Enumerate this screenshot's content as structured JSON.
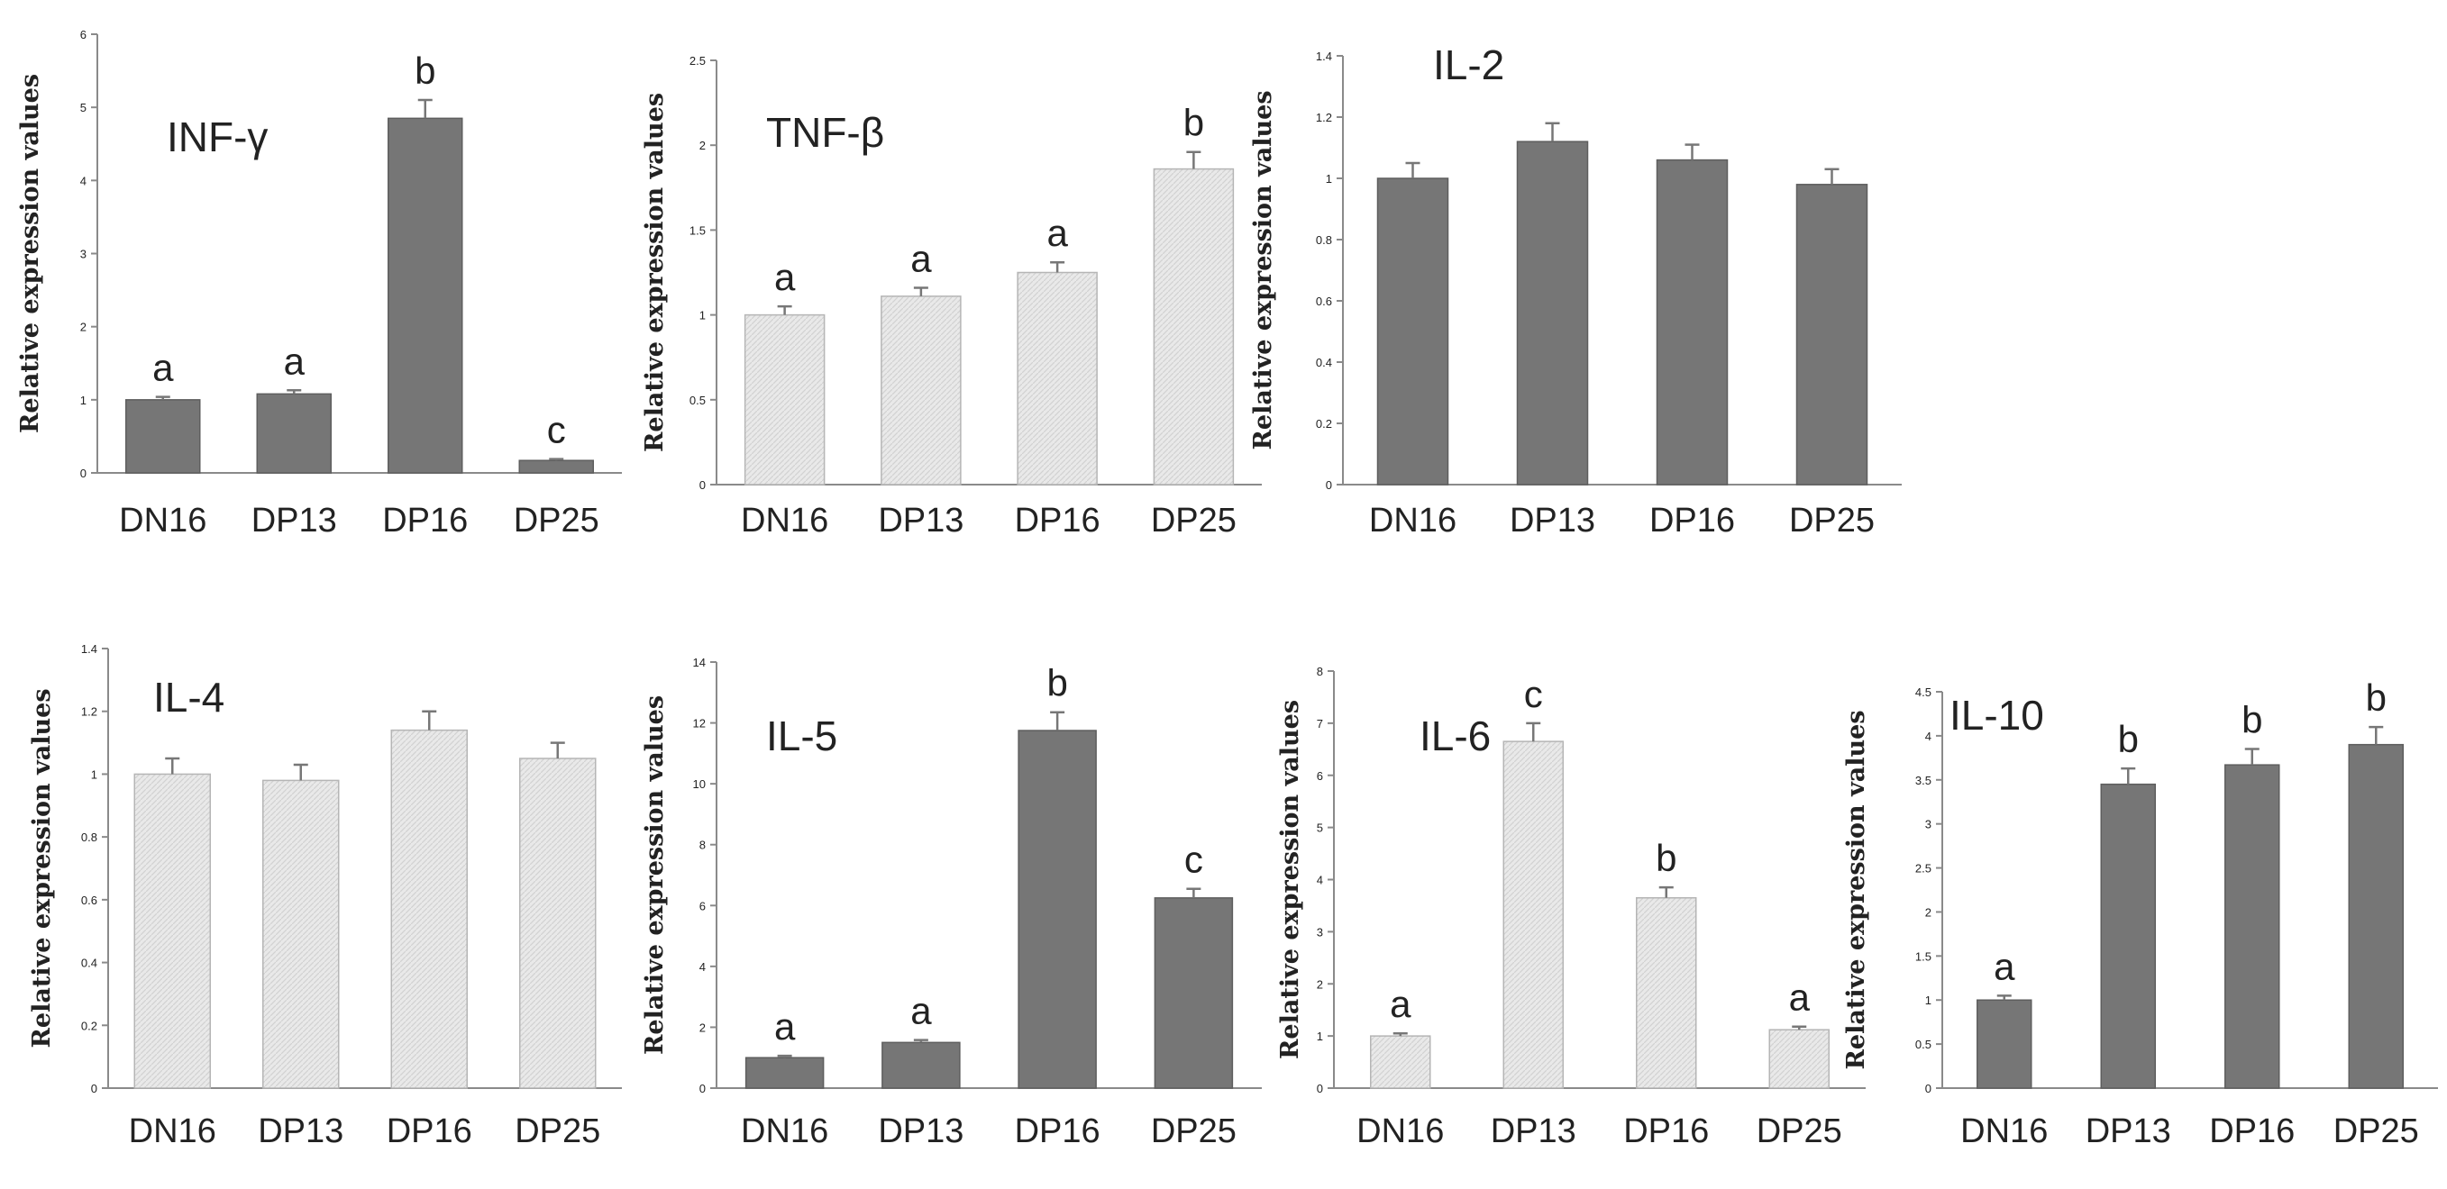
{
  "chart_data": [
    {
      "type": "bar",
      "title": "INF-γ",
      "ylabel": "Relative expression values",
      "categories": [
        "DN16",
        "DP13",
        "DP16",
        "DP25"
      ],
      "values": [
        1.0,
        1.08,
        4.85,
        0.17
      ],
      "errors": [
        0.04,
        0.05,
        0.25,
        0.02
      ],
      "letters": [
        "a",
        "a",
        "b",
        "c"
      ],
      "ylim": [
        0,
        6
      ],
      "yticks": [
        "0",
        "1",
        "2",
        "3",
        "4",
        "5",
        "6"
      ],
      "bar_color": "#767676"
    },
    {
      "type": "bar",
      "title": "TNF-β",
      "ylabel": "Relative expression values",
      "categories": [
        "DN16",
        "DP13",
        "DP16",
        "DP25"
      ],
      "values": [
        1.0,
        1.11,
        1.25,
        1.86
      ],
      "errors": [
        0.05,
        0.05,
        0.06,
        0.1
      ],
      "letters": [
        "a",
        "a",
        "a",
        "b"
      ],
      "ylim": [
        0,
        2.5
      ],
      "yticks": [
        "0",
        "0.5",
        "1",
        "1.5",
        "2",
        "2.5"
      ],
      "bar_color": "#e6e6e6"
    },
    {
      "type": "bar",
      "title": "IL-2",
      "ylabel": "Relative expression values",
      "categories": [
        "DN16",
        "DP13",
        "DP16",
        "DP25"
      ],
      "values": [
        1.0,
        1.12,
        1.06,
        0.98
      ],
      "errors": [
        0.05,
        0.06,
        0.05,
        0.05
      ],
      "letters": [],
      "ylim": [
        0,
        1.4
      ],
      "yticks": [
        "0",
        "0.2",
        "0.4",
        "0.6",
        "0.8",
        "1",
        "1.2",
        "1.4"
      ],
      "bar_color": "#767676"
    },
    {
      "type": "bar",
      "title": "IL-4",
      "ylabel": "Relative expression values",
      "categories": [
        "DN16",
        "DP13",
        "DP16",
        "DP25"
      ],
      "values": [
        1.0,
        0.98,
        1.14,
        1.05
      ],
      "errors": [
        0.05,
        0.05,
        0.06,
        0.05
      ],
      "letters": [],
      "ylim": [
        0,
        1.4
      ],
      "yticks": [
        "0",
        "0.2",
        "0.4",
        "0.6",
        "0.8",
        "1",
        "1.2",
        "1.4"
      ],
      "bar_color": "#e6e6e6"
    },
    {
      "type": "bar",
      "title": "IL-5",
      "ylabel": "Relative expression values",
      "categories": [
        "DN16",
        "DP13",
        "DP16",
        "DP25"
      ],
      "values": [
        1.0,
        1.5,
        11.75,
        6.25
      ],
      "errors": [
        0.06,
        0.08,
        0.6,
        0.3
      ],
      "letters": [
        "a",
        "a",
        "b",
        "c"
      ],
      "ylim": [
        0,
        14
      ],
      "yticks": [
        "0",
        "2",
        "4",
        "6",
        "8",
        "10",
        "12",
        "14"
      ],
      "bar_color": "#767676"
    },
    {
      "type": "bar",
      "title": "IL-6",
      "ylabel": "Relative expression values",
      "categories": [
        "DN16",
        "DP13",
        "DP16",
        "DP25"
      ],
      "values": [
        1.0,
        6.65,
        3.65,
        1.12
      ],
      "errors": [
        0.05,
        0.35,
        0.2,
        0.06
      ],
      "letters": [
        "a",
        "c",
        "b",
        "a"
      ],
      "ylim": [
        0,
        8
      ],
      "yticks": [
        "0",
        "1",
        "2",
        "3",
        "4",
        "5",
        "6",
        "7",
        "8"
      ],
      "bar_color": "#e6e6e6"
    },
    {
      "type": "bar",
      "title": "IL-10",
      "ylabel": "Relative expression values",
      "categories": [
        "DN16",
        "DP13",
        "DP16",
        "DP25"
      ],
      "values": [
        1.0,
        3.45,
        3.67,
        3.9
      ],
      "errors": [
        0.05,
        0.18,
        0.18,
        0.2
      ],
      "letters": [
        "a",
        "b",
        "b",
        "b"
      ],
      "ylim": [
        0,
        4.5
      ],
      "yticks": [
        "0",
        "0.5",
        "1",
        "1.5",
        "2",
        "2.5",
        "3",
        "3.5",
        "4",
        "4.5"
      ],
      "bar_color": "#767676"
    }
  ]
}
